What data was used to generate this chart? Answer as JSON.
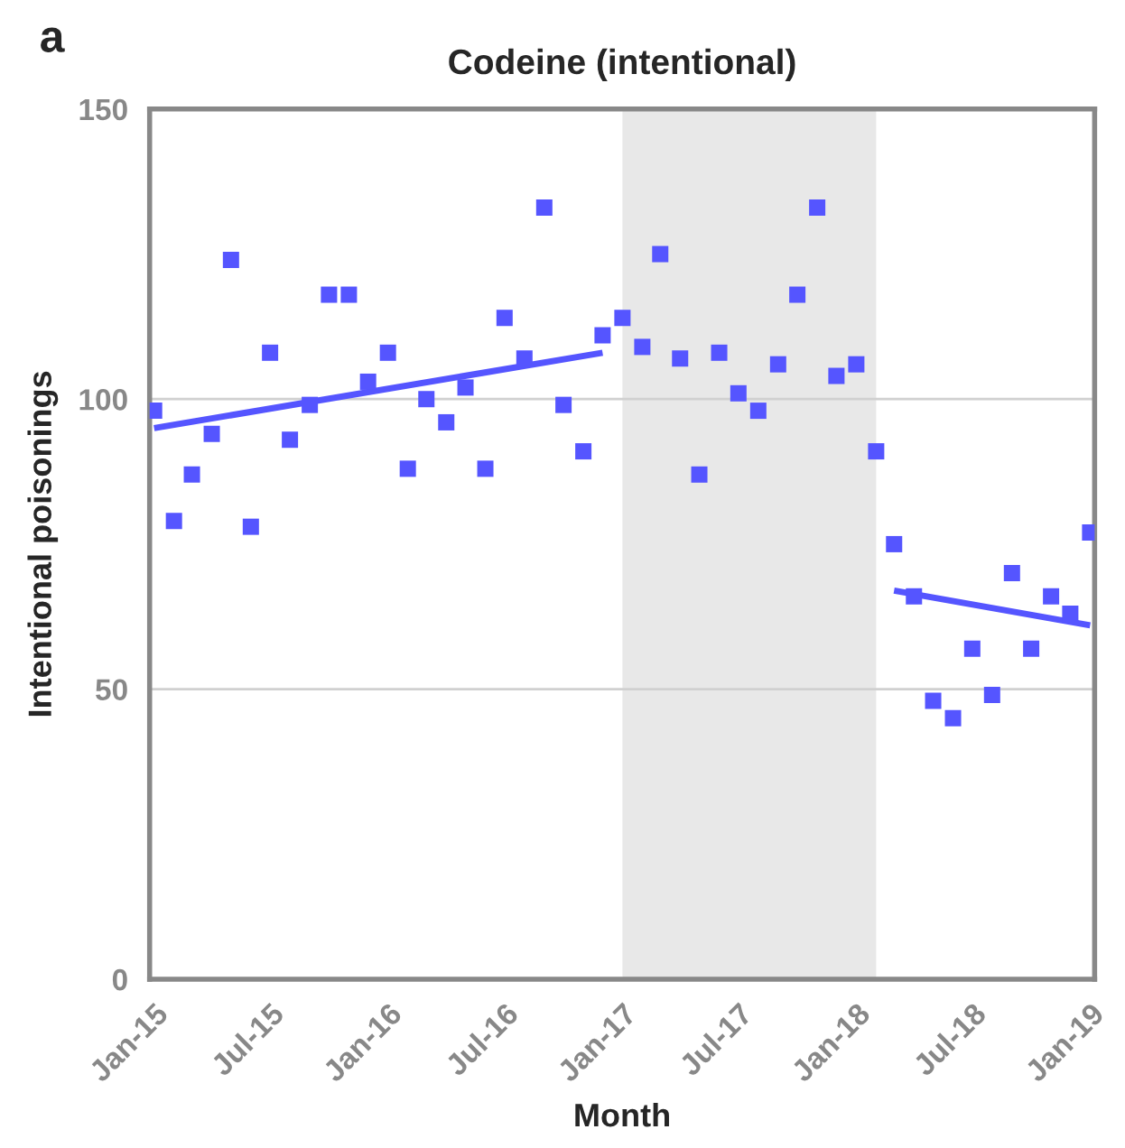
{
  "chart_data": {
    "type": "scatter",
    "title": "Codeine (intentional)",
    "xlabel": "Month",
    "ylabel": "Intentional poisonings",
    "annotations": [
      "a"
    ],
    "x": [
      "2015-01",
      "2015-02",
      "2015-03",
      "2015-04",
      "2015-05",
      "2015-06",
      "2015-07",
      "2015-08",
      "2015-09",
      "2015-10",
      "2015-11",
      "2015-12",
      "2016-01",
      "2016-02",
      "2016-03",
      "2016-04",
      "2016-05",
      "2016-06",
      "2016-07",
      "2016-08",
      "2016-09",
      "2016-10",
      "2016-11",
      "2016-12",
      "2017-01",
      "2017-02",
      "2017-03",
      "2017-04",
      "2017-05",
      "2017-06",
      "2017-07",
      "2017-08",
      "2017-09",
      "2017-10",
      "2017-11",
      "2017-12",
      "2018-01",
      "2018-02",
      "2018-03",
      "2018-04",
      "2018-05",
      "2018-06",
      "2018-07",
      "2018-08",
      "2018-09",
      "2018-10",
      "2018-11",
      "2018-12",
      "2019-01"
    ],
    "series": [
      {
        "color": "#5555ff",
        "marker": "square",
        "values": [
          98,
          79,
          87,
          94,
          124,
          78,
          108,
          93,
          99,
          118,
          118,
          103,
          108,
          88,
          100,
          96,
          102,
          88,
          114,
          107,
          133,
          99,
          91,
          111,
          114,
          109,
          125,
          107,
          87,
          108,
          101,
          98,
          106,
          118,
          133,
          104,
          106,
          91,
          75,
          66,
          48,
          45,
          57,
          49,
          70,
          57,
          66,
          63,
          77
        ]
      },
      {
        "type": "line",
        "color": "#5555ff",
        "x": [
          "2015-01",
          "2016-12"
        ],
        "values": [
          95,
          108
        ]
      },
      {
        "type": "line",
        "color": "#5555ff",
        "x": [
          "2018-03",
          "2019-01"
        ],
        "values": [
          67,
          61
        ]
      }
    ],
    "bands": [
      {
        "axis": "x",
        "from": "2017-01",
        "to": "2018-02",
        "color": "#e8e8e8"
      }
    ],
    "xlim": [
      "2014-12-25",
      "2019-01-08"
    ],
    "xticks": [
      {
        "value": "2015-01",
        "label": "Jan-15"
      },
      {
        "value": "2015-07",
        "label": "Jul-15"
      },
      {
        "value": "2016-01",
        "label": "Jan-16"
      },
      {
        "value": "2016-07",
        "label": "Jul-16"
      },
      {
        "value": "2017-01",
        "label": "Jan-17"
      },
      {
        "value": "2017-07",
        "label": "Jul-17"
      },
      {
        "value": "2018-01",
        "label": "Jan-18"
      },
      {
        "value": "2018-07",
        "label": "Jul-18"
      },
      {
        "value": "2019-01",
        "label": "Jan-19"
      }
    ],
    "ylim": [
      0,
      150
    ],
    "yticks": [
      0,
      50,
      100,
      150
    ],
    "grid": "y"
  }
}
